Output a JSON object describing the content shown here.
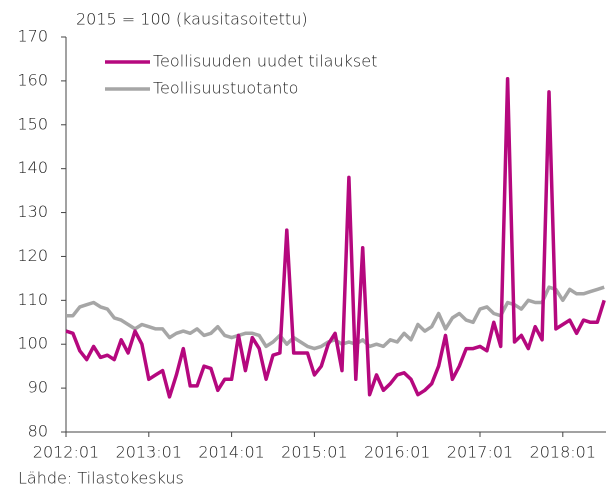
{
  "chart_data": {
    "type": "line",
    "subtitle": "2015 = 100 (kausitasoitettu)",
    "source": "Lähde: Tilastokeskus",
    "categories": [
      "2012:01",
      null,
      null,
      null,
      null,
      null,
      null,
      null,
      null,
      null,
      null,
      null,
      "2013:01",
      null,
      null,
      null,
      null,
      null,
      null,
      null,
      null,
      null,
      null,
      null,
      "2014:01",
      null,
      null,
      null,
      null,
      null,
      null,
      null,
      null,
      null,
      null,
      null,
      "2015:01",
      null,
      null,
      null,
      null,
      null,
      null,
      null,
      null,
      null,
      null,
      null,
      "2016:01",
      null,
      null,
      null,
      null,
      null,
      null,
      null,
      null,
      null,
      null,
      null,
      "2017:01",
      null,
      null,
      null,
      null,
      null,
      null,
      null,
      null,
      null,
      null,
      null,
      "2018:01",
      null,
      null,
      null,
      null,
      null,
      null
    ],
    "series": [
      {
        "name": "Teollisuuden uudet tilaukset",
        "color": "#b5087e",
        "values": [
          103,
          102.5,
          98.5,
          96.5,
          99.5,
          97,
          97.5,
          96.5,
          101,
          98,
          103,
          100,
          92,
          93,
          94,
          88,
          93,
          99,
          90.5,
          90.5,
          95,
          94.5,
          89.5,
          92,
          92,
          102,
          94,
          101.5,
          99,
          92,
          97.5,
          98,
          126,
          98,
          98,
          98,
          93,
          95,
          100,
          102.5,
          94,
          138,
          92,
          122,
          88.5,
          93,
          89.5,
          91,
          93,
          93.5,
          92,
          88.5,
          89.5,
          91,
          95,
          102,
          92,
          95,
          99,
          99,
          99.5,
          98.5,
          105,
          99.5,
          160.5,
          100.5,
          102,
          99,
          104,
          101,
          157.5,
          103.5,
          104.5,
          105.5,
          102.5,
          105.5,
          105,
          105,
          110
        ]
      },
      {
        "name": "Teollisuustuotanto",
        "color": "#a6a6a6",
        "values": [
          106.5,
          106.5,
          108.5,
          109,
          109.5,
          108.5,
          108,
          106,
          105.5,
          104.5,
          103.5,
          104.5,
          104,
          103.5,
          103.5,
          101.5,
          102.5,
          103,
          102.5,
          103.5,
          102,
          102.5,
          104,
          102,
          101.5,
          102,
          102.5,
          102.5,
          102,
          99.5,
          100.5,
          102,
          100,
          101.5,
          100.5,
          99.5,
          99,
          99.5,
          100.5,
          101,
          100,
          100.5,
          100,
          101,
          99.5,
          100,
          99.5,
          101,
          100.5,
          102.5,
          101,
          104.5,
          103,
          104,
          107,
          103.5,
          106,
          107,
          105.5,
          105,
          108,
          108.5,
          107,
          106.5,
          109.5,
          109,
          108,
          110,
          109.5,
          109.5,
          113,
          112.5,
          110,
          112.5,
          111.5,
          111.5,
          112,
          112.5,
          113
        ]
      }
    ],
    "ylim": [
      80,
      170
    ],
    "yticks": [
      80,
      90,
      100,
      110,
      120,
      130,
      140,
      150,
      160,
      170
    ],
    "grid": false,
    "legend": "top-left"
  }
}
